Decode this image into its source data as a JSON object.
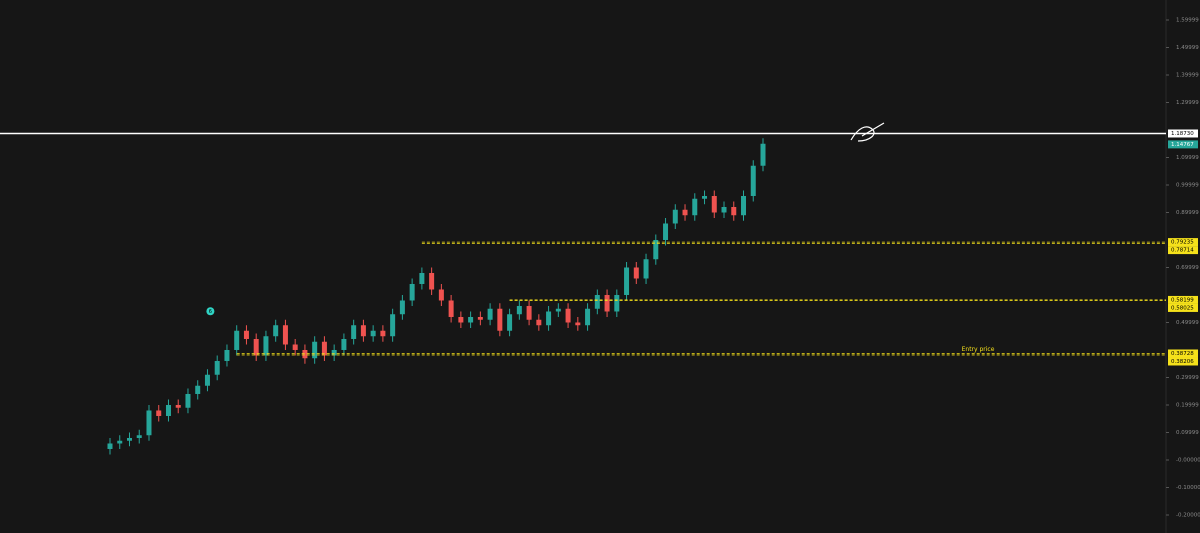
{
  "chart_data": {
    "type": "candlestick",
    "up_color": "#26a69a",
    "down_color": "#ef5350",
    "ylim": [
      -0.2655,
      1.6727
    ],
    "yticks": [
      1.59999,
      1.49999,
      1.39999,
      1.29999,
      1.09999,
      0.99999,
      0.89999,
      0.69999,
      0.49999,
      0.29999,
      0.19999,
      0.09999,
      {
        "value": 0,
        "label": "-0.00000"
      },
      {
        "value": -0.1,
        "label": "-0.10000"
      },
      {
        "value": -0.2,
        "label": "-0.20000"
      }
    ],
    "open": [
      0.04,
      0.06,
      0.07,
      0.08,
      0.09,
      0.18,
      0.16,
      0.2,
      0.19,
      0.24,
      0.27,
      0.31,
      0.36,
      0.4,
      0.47,
      0.44,
      0.38,
      0.45,
      0.49,
      0.42,
      0.4,
      0.37,
      0.43,
      0.38,
      0.4,
      0.44,
      0.49,
      0.45,
      0.47,
      0.45,
      0.53,
      0.58,
      0.64,
      0.68,
      0.62,
      0.58,
      0.52,
      0.5,
      0.52,
      0.51,
      0.55,
      0.47,
      0.53,
      0.56,
      0.51,
      0.49,
      0.54,
      0.55,
      0.5,
      0.49,
      0.55,
      0.6,
      0.54,
      0.6,
      0.7,
      0.66,
      0.73,
      0.8,
      0.86,
      0.91,
      0.89,
      0.95,
      0.96,
      0.9,
      0.92,
      0.89,
      0.96,
      1.07
    ],
    "high": [
      0.08,
      0.09,
      0.1,
      0.11,
      0.2,
      0.2,
      0.22,
      0.22,
      0.26,
      0.29,
      0.33,
      0.38,
      0.42,
      0.49,
      0.49,
      0.46,
      0.47,
      0.51,
      0.51,
      0.44,
      0.42,
      0.45,
      0.45,
      0.42,
      0.46,
      0.51,
      0.51,
      0.49,
      0.49,
      0.55,
      0.6,
      0.66,
      0.7,
      0.7,
      0.64,
      0.6,
      0.54,
      0.54,
      0.54,
      0.57,
      0.57,
      0.55,
      0.58,
      0.58,
      0.53,
      0.56,
      0.57,
      0.57,
      0.52,
      0.57,
      0.62,
      0.62,
      0.62,
      0.72,
      0.72,
      0.75,
      0.82,
      0.88,
      0.93,
      0.93,
      0.97,
      0.98,
      0.98,
      0.94,
      0.94,
      0.98,
      1.09,
      1.17
    ],
    "low": [
      0.02,
      0.04,
      0.05,
      0.06,
      0.07,
      0.14,
      0.14,
      0.17,
      0.17,
      0.22,
      0.25,
      0.29,
      0.34,
      0.38,
      0.42,
      0.36,
      0.36,
      0.43,
      0.4,
      0.38,
      0.35,
      0.35,
      0.36,
      0.36,
      0.38,
      0.42,
      0.43,
      0.43,
      0.43,
      0.43,
      0.51,
      0.56,
      0.62,
      0.6,
      0.56,
      0.5,
      0.48,
      0.48,
      0.49,
      0.49,
      0.45,
      0.45,
      0.51,
      0.49,
      0.47,
      0.47,
      0.52,
      0.48,
      0.47,
      0.47,
      0.53,
      0.52,
      0.52,
      0.58,
      0.64,
      0.64,
      0.71,
      0.78,
      0.84,
      0.87,
      0.87,
      0.93,
      0.88,
      0.88,
      0.87,
      0.87,
      0.94,
      1.05
    ],
    "close": [
      0.06,
      0.07,
      0.08,
      0.09,
      0.18,
      0.16,
      0.2,
      0.19,
      0.24,
      0.27,
      0.31,
      0.36,
      0.4,
      0.47,
      0.44,
      0.38,
      0.45,
      0.49,
      0.42,
      0.4,
      0.37,
      0.43,
      0.38,
      0.4,
      0.44,
      0.49,
      0.45,
      0.47,
      0.45,
      0.53,
      0.58,
      0.64,
      0.68,
      0.62,
      0.58,
      0.52,
      0.5,
      0.52,
      0.51,
      0.55,
      0.47,
      0.53,
      0.56,
      0.51,
      0.49,
      0.54,
      0.55,
      0.5,
      0.49,
      0.55,
      0.6,
      0.54,
      0.6,
      0.7,
      0.66,
      0.73,
      0.8,
      0.86,
      0.91,
      0.89,
      0.95,
      0.96,
      0.9,
      0.92,
      0.89,
      0.96,
      1.07,
      1.15
    ],
    "hline": {
      "value": 1.1873,
      "label": "1.18730",
      "color": "#ffffff"
    },
    "last_price": 1.14767,
    "zones": [
      {
        "top": 0.79235,
        "bottom": 0.78714
      },
      {
        "top": 0.58199,
        "bottom": 0.58025
      },
      {
        "top": 0.38728,
        "bottom": 0.38206,
        "annotation": "Entry price"
      }
    ],
    "zone_color": "#f5e11b",
    "marker": "6"
  }
}
